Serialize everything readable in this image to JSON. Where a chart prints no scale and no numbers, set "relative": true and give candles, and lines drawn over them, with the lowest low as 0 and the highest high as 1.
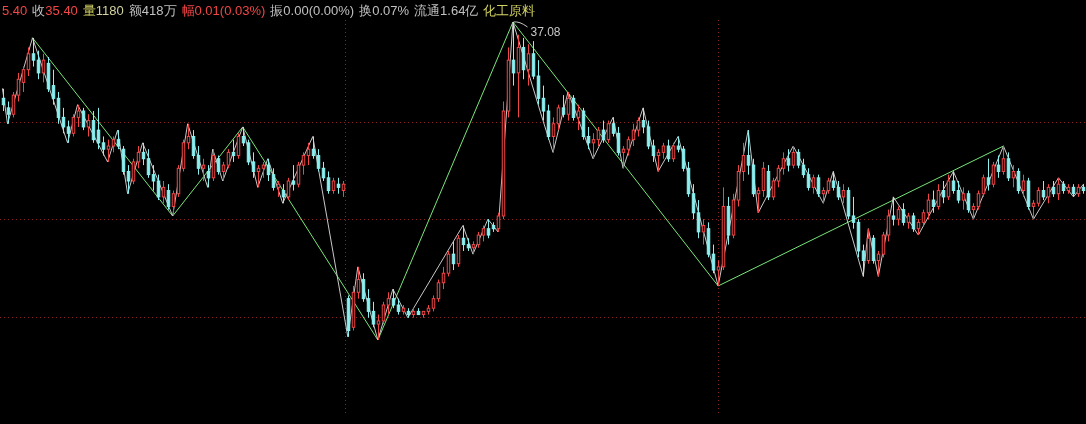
{
  "chart_data": {
    "type": "candlestick",
    "relative": true,
    "grid": true,
    "annotations": [
      "5.40",
      "收35.40",
      "量1180",
      "额418万",
      "幅0.01(0.03%)",
      "振0.00(0.00%)",
      "换0.07%",
      "流通1.64亿",
      "化工原料"
    ],
    "categories": [
      null,
      null,
      null,
      null,
      null,
      null,
      null,
      null,
      null,
      null,
      null,
      null,
      null,
      null,
      null,
      null,
      null,
      null,
      null,
      null,
      null,
      null,
      null,
      null,
      null,
      null,
      null,
      null,
      null,
      null,
      null,
      null,
      null,
      null,
      null,
      null,
      null,
      null,
      null,
      null,
      null,
      null,
      null,
      null,
      null,
      null,
      null,
      null,
      null,
      null,
      null,
      null,
      null,
      null,
      null,
      null,
      null,
      null,
      null,
      null,
      null,
      null,
      null,
      null,
      null,
      null,
      null,
      null,
      null,
      null,
      null,
      null,
      null,
      null,
      null,
      null,
      null,
      null,
      null,
      null,
      null,
      null,
      null,
      null,
      null,
      null,
      null,
      null,
      null,
      null,
      null,
      null,
      null,
      null,
      null,
      null,
      null,
      null,
      null,
      null,
      null,
      null,
      null,
      null,
      null,
      null,
      null,
      null,
      null,
      null,
      null,
      null,
      null,
      null,
      null,
      null,
      null,
      null,
      null,
      null,
      null,
      null,
      null,
      null,
      null,
      null,
      null,
      null,
      null,
      null,
      null,
      null,
      null,
      null,
      null,
      null,
      null,
      null,
      null,
      null,
      null,
      null,
      null,
      null,
      null,
      null,
      null,
      null,
      null,
      null,
      null,
      null,
      null,
      null,
      null,
      null,
      null,
      null,
      null,
      null,
      null,
      null,
      null,
      null,
      null,
      null,
      null,
      null,
      null,
      null,
      null,
      null,
      null,
      null,
      null,
      null,
      null,
      null,
      null,
      null,
      null,
      null,
      null,
      null,
      null,
      null,
      null,
      null,
      null,
      null,
      null,
      null,
      null,
      null,
      null,
      null,
      null,
      null,
      null,
      null,
      null,
      null,
      null,
      null,
      null,
      null,
      null,
      null,
      null,
      null,
      null,
      null,
      null,
      null,
      null,
      null,
      null
    ],
    "ohlc": [
      [
        0.76,
        0.79,
        0.72,
        0.74
      ],
      [
        0.73,
        0.75,
        0.68,
        0.71
      ],
      [
        0.71,
        0.78,
        0.7,
        0.77
      ],
      [
        0.77,
        0.84,
        0.75,
        0.82
      ],
      [
        0.81,
        0.86,
        0.78,
        0.85
      ],
      [
        0.85,
        0.92,
        0.83,
        0.9
      ],
      [
        0.9,
        0.95,
        0.86,
        0.88
      ],
      [
        0.88,
        0.91,
        0.82,
        0.84
      ],
      [
        0.84,
        0.9,
        0.81,
        0.88
      ],
      [
        0.87,
        0.89,
        0.78,
        0.79
      ],
      [
        0.8,
        0.85,
        0.74,
        0.76
      ],
      [
        0.76,
        0.78,
        0.68,
        0.7
      ],
      [
        0.7,
        0.73,
        0.65,
        0.67
      ],
      [
        0.67,
        0.69,
        0.62,
        0.65
      ],
      [
        0.65,
        0.71,
        0.64,
        0.7
      ],
      [
        0.7,
        0.74,
        0.67,
        0.72
      ],
      [
        0.72,
        0.73,
        0.66,
        0.67
      ],
      [
        0.67,
        0.71,
        0.64,
        0.69
      ],
      [
        0.69,
        0.72,
        0.62,
        0.63
      ],
      [
        0.66,
        0.73,
        0.6,
        0.62
      ],
      [
        0.62,
        0.64,
        0.58,
        0.6
      ],
      [
        0.6,
        0.63,
        0.56,
        0.61
      ],
      [
        0.61,
        0.64,
        0.59,
        0.63
      ],
      [
        0.63,
        0.66,
        0.6,
        0.61
      ],
      [
        0.6,
        0.61,
        0.52,
        0.53
      ],
      [
        0.53,
        0.55,
        0.46,
        0.5
      ],
      [
        0.5,
        0.57,
        0.49,
        0.56
      ],
      [
        0.56,
        0.61,
        0.54,
        0.59
      ],
      [
        0.59,
        0.62,
        0.55,
        0.57
      ],
      [
        0.57,
        0.6,
        0.51,
        0.52
      ],
      [
        0.52,
        0.55,
        0.47,
        0.5
      ],
      [
        0.5,
        0.52,
        0.44,
        0.45
      ],
      [
        0.45,
        0.5,
        0.43,
        0.48
      ],
      [
        0.47,
        0.49,
        0.41,
        0.42
      ],
      [
        0.42,
        0.47,
        0.39,
        0.46
      ],
      [
        0.46,
        0.55,
        0.45,
        0.54
      ],
      [
        0.54,
        0.63,
        0.53,
        0.62
      ],
      [
        0.62,
        0.68,
        0.6,
        0.64
      ],
      [
        0.64,
        0.66,
        0.57,
        0.58
      ],
      [
        0.58,
        0.61,
        0.52,
        0.54
      ],
      [
        0.54,
        0.57,
        0.5,
        0.55
      ],
      [
        0.53,
        0.55,
        0.48,
        0.51
      ],
      [
        0.51,
        0.6,
        0.5,
        0.58
      ],
      [
        0.57,
        0.58,
        0.52,
        0.53
      ],
      [
        0.53,
        0.56,
        0.5,
        0.55
      ],
      [
        0.55,
        0.6,
        0.54,
        0.59
      ],
      [
        0.59,
        0.63,
        0.56,
        0.58
      ],
      [
        0.58,
        0.65,
        0.57,
        0.64
      ],
      [
        0.64,
        0.67,
        0.61,
        0.62
      ],
      [
        0.62,
        0.63,
        0.55,
        0.56
      ],
      [
        0.56,
        0.59,
        0.51,
        0.53
      ],
      [
        0.53,
        0.55,
        0.48,
        0.54
      ],
      [
        0.54,
        0.56,
        0.51,
        0.55
      ],
      [
        0.55,
        0.57,
        0.5,
        0.52
      ],
      [
        0.52,
        0.54,
        0.47,
        0.48
      ],
      [
        0.48,
        0.5,
        0.45,
        0.49
      ],
      [
        0.47,
        0.49,
        0.43,
        0.45
      ],
      [
        0.45,
        0.51,
        0.44,
        0.5
      ],
      [
        0.5,
        0.55,
        0.47,
        0.49
      ],
      [
        0.49,
        0.56,
        0.48,
        0.55
      ],
      [
        0.55,
        0.59,
        0.52,
        0.58
      ],
      [
        0.58,
        0.62,
        0.55,
        0.6
      ],
      [
        0.6,
        0.64,
        0.57,
        0.58
      ],
      [
        0.58,
        0.6,
        0.53,
        0.54
      ],
      [
        0.54,
        0.56,
        0.5,
        0.51
      ],
      [
        0.51,
        0.53,
        0.46,
        0.47
      ],
      [
        0.47,
        0.51,
        0.46,
        0.5
      ],
      [
        0.49,
        0.51,
        0.46,
        0.48
      ],
      [
        0.47,
        0.5,
        0.45,
        0.49
      ],
      [
        0.13,
        0.14,
        0.01,
        0.03
      ],
      [
        0.04,
        0.17,
        0.03,
        0.15
      ],
      [
        0.15,
        0.23,
        0.13,
        0.19
      ],
      [
        0.19,
        0.21,
        0.12,
        0.13
      ],
      [
        0.13,
        0.16,
        0.07,
        0.09
      ],
      [
        0.09,
        0.12,
        0.04,
        0.05
      ],
      [
        0.05,
        0.08,
        0.0,
        0.06
      ],
      [
        0.06,
        0.12,
        0.05,
        0.11
      ],
      [
        0.11,
        0.15,
        0.08,
        0.13
      ],
      [
        0.13,
        0.16,
        0.1,
        0.11
      ],
      [
        0.11,
        0.13,
        0.08,
        0.09
      ],
      [
        0.09,
        0.11,
        0.08,
        0.1
      ],
      [
        0.09,
        0.1,
        0.07,
        0.08
      ],
      [
        0.08,
        0.1,
        0.07,
        0.09
      ],
      [
        0.09,
        0.1,
        0.08,
        0.08
      ],
      [
        0.08,
        0.09,
        0.07,
        0.09
      ],
      [
        0.09,
        0.11,
        0.08,
        0.1
      ],
      [
        0.1,
        0.14,
        0.09,
        0.13
      ],
      [
        0.13,
        0.19,
        0.12,
        0.18
      ],
      [
        0.18,
        0.23,
        0.16,
        0.21
      ],
      [
        0.21,
        0.28,
        0.2,
        0.27
      ],
      [
        0.27,
        0.31,
        0.22,
        0.24
      ],
      [
        0.24,
        0.33,
        0.23,
        0.32
      ],
      [
        0.32,
        0.36,
        0.28,
        0.3
      ],
      [
        0.3,
        0.32,
        0.28,
        0.29
      ],
      [
        0.29,
        0.31,
        0.27,
        0.3
      ],
      [
        0.3,
        0.34,
        0.29,
        0.33
      ],
      [
        0.33,
        0.36,
        0.31,
        0.35
      ],
      [
        0.35,
        0.38,
        0.32,
        0.33
      ],
      [
        0.36,
        0.37,
        0.34,
        0.35
      ],
      [
        0.35,
        0.4,
        0.34,
        0.39
      ],
      [
        0.39,
        0.75,
        0.38,
        0.72
      ],
      [
        0.72,
        0.92,
        0.7,
        0.88
      ],
      [
        0.88,
        1.0,
        0.8,
        0.84
      ],
      [
        0.84,
        0.96,
        0.7,
        0.92
      ],
      [
        0.92,
        0.95,
        0.82,
        0.85
      ],
      [
        0.85,
        0.93,
        0.8,
        0.9
      ],
      [
        0.9,
        0.94,
        0.82,
        0.83
      ],
      [
        0.83,
        0.88,
        0.74,
        0.76
      ],
      [
        0.76,
        0.8,
        0.69,
        0.72
      ],
      [
        0.72,
        0.74,
        0.63,
        0.64
      ],
      [
        0.64,
        0.7,
        0.59,
        0.68
      ],
      [
        0.68,
        0.74,
        0.66,
        0.73
      ],
      [
        0.73,
        0.77,
        0.7,
        0.71
      ],
      [
        0.71,
        0.78,
        0.69,
        0.76
      ],
      [
        0.76,
        0.77,
        0.69,
        0.7
      ],
      [
        0.7,
        0.74,
        0.66,
        0.72
      ],
      [
        0.72,
        0.73,
        0.63,
        0.64
      ],
      [
        0.64,
        0.67,
        0.6,
        0.62
      ],
      [
        0.62,
        0.65,
        0.57,
        0.63
      ],
      [
        0.63,
        0.67,
        0.61,
        0.66
      ],
      [
        0.66,
        0.69,
        0.62,
        0.63
      ],
      [
        0.63,
        0.69,
        0.62,
        0.68
      ],
      [
        0.68,
        0.7,
        0.64,
        0.65
      ],
      [
        0.65,
        0.67,
        0.58,
        0.59
      ],
      [
        0.59,
        0.61,
        0.54,
        0.6
      ],
      [
        0.6,
        0.64,
        0.58,
        0.63
      ],
      [
        0.63,
        0.68,
        0.61,
        0.66
      ],
      [
        0.66,
        0.7,
        0.64,
        0.69
      ],
      [
        0.69,
        0.73,
        0.65,
        0.67
      ],
      [
        0.67,
        0.69,
        0.6,
        0.61
      ],
      [
        0.61,
        0.63,
        0.56,
        0.58
      ],
      [
        0.58,
        0.6,
        0.53,
        0.59
      ],
      [
        0.59,
        0.62,
        0.57,
        0.61
      ],
      [
        0.61,
        0.63,
        0.56,
        0.57
      ],
      [
        0.57,
        0.62,
        0.56,
        0.61
      ],
      [
        0.61,
        0.64,
        0.59,
        0.6
      ],
      [
        0.6,
        0.61,
        0.53,
        0.54
      ],
      [
        0.54,
        0.56,
        0.45,
        0.46
      ],
      [
        0.46,
        0.49,
        0.38,
        0.4
      ],
      [
        0.4,
        0.44,
        0.32,
        0.34
      ],
      [
        0.34,
        0.38,
        0.3,
        0.36
      ],
      [
        0.35,
        0.37,
        0.26,
        0.27
      ],
      [
        0.27,
        0.3,
        0.21,
        0.22
      ],
      [
        0.22,
        0.25,
        0.17,
        0.23
      ],
      [
        0.23,
        0.48,
        0.22,
        0.42
      ],
      [
        0.42,
        0.45,
        0.3,
        0.33
      ],
      [
        0.33,
        0.46,
        0.32,
        0.44
      ],
      [
        0.44,
        0.55,
        0.42,
        0.53
      ],
      [
        0.53,
        0.62,
        0.5,
        0.58
      ],
      [
        0.58,
        0.66,
        0.52,
        0.55
      ],
      [
        0.55,
        0.57,
        0.45,
        0.46
      ],
      [
        0.46,
        0.48,
        0.4,
        0.47
      ],
      [
        0.47,
        0.56,
        0.45,
        0.54
      ],
      [
        0.53,
        0.55,
        0.44,
        0.45
      ],
      [
        0.45,
        0.51,
        0.44,
        0.5
      ],
      [
        0.5,
        0.55,
        0.48,
        0.54
      ],
      [
        0.54,
        0.59,
        0.52,
        0.57
      ],
      [
        0.57,
        0.6,
        0.53,
        0.55
      ],
      [
        0.55,
        0.61,
        0.54,
        0.59
      ],
      [
        0.59,
        0.6,
        0.54,
        0.55
      ],
      [
        0.55,
        0.57,
        0.51,
        0.52
      ],
      [
        0.52,
        0.54,
        0.47,
        0.48
      ],
      [
        0.48,
        0.52,
        0.46,
        0.51
      ],
      [
        0.51,
        0.52,
        0.45,
        0.46
      ],
      [
        0.46,
        0.48,
        0.43,
        0.47
      ],
      [
        0.47,
        0.51,
        0.46,
        0.5
      ],
      [
        0.5,
        0.53,
        0.47,
        0.48
      ],
      [
        0.48,
        0.5,
        0.44,
        0.45
      ],
      [
        0.45,
        0.49,
        0.43,
        0.47
      ],
      [
        0.47,
        0.48,
        0.38,
        0.39
      ],
      [
        0.39,
        0.45,
        0.35,
        0.37
      ],
      [
        0.37,
        0.38,
        0.26,
        0.28
      ],
      [
        0.28,
        0.3,
        0.2,
        0.25
      ],
      [
        0.25,
        0.35,
        0.24,
        0.32
      ],
      [
        0.32,
        0.33,
        0.24,
        0.25
      ],
      [
        0.25,
        0.28,
        0.2,
        0.27
      ],
      [
        0.27,
        0.34,
        0.26,
        0.33
      ],
      [
        0.33,
        0.41,
        0.31,
        0.39
      ],
      [
        0.39,
        0.45,
        0.36,
        0.38
      ],
      [
        0.38,
        0.42,
        0.36,
        0.41
      ],
      [
        0.41,
        0.43,
        0.36,
        0.37
      ],
      [
        0.37,
        0.4,
        0.35,
        0.39
      ],
      [
        0.39,
        0.4,
        0.34,
        0.35
      ],
      [
        0.35,
        0.38,
        0.33,
        0.37
      ],
      [
        0.37,
        0.41,
        0.36,
        0.4
      ],
      [
        0.4,
        0.46,
        0.38,
        0.44
      ],
      [
        0.44,
        0.47,
        0.4,
        0.42
      ],
      [
        0.42,
        0.49,
        0.41,
        0.47
      ],
      [
        0.47,
        0.5,
        0.43,
        0.45
      ],
      [
        0.45,
        0.52,
        0.44,
        0.5
      ],
      [
        0.5,
        0.53,
        0.46,
        0.47
      ],
      [
        0.47,
        0.5,
        0.43,
        0.44
      ],
      [
        0.44,
        0.48,
        0.41,
        0.46
      ],
      [
        0.46,
        0.47,
        0.4,
        0.41
      ],
      [
        0.41,
        0.43,
        0.38,
        0.42
      ],
      [
        0.42,
        0.47,
        0.41,
        0.46
      ],
      [
        0.46,
        0.52,
        0.45,
        0.51
      ],
      [
        0.51,
        0.57,
        0.47,
        0.49
      ],
      [
        0.49,
        0.56,
        0.48,
        0.55
      ],
      [
        0.55,
        0.58,
        0.51,
        0.53
      ],
      [
        0.53,
        0.61,
        0.52,
        0.57
      ],
      [
        0.57,
        0.59,
        0.5,
        0.51
      ],
      [
        0.51,
        0.55,
        0.48,
        0.53
      ],
      [
        0.53,
        0.54,
        0.46,
        0.47
      ],
      [
        0.47,
        0.52,
        0.45,
        0.5
      ],
      [
        0.5,
        0.51,
        0.41,
        0.42
      ],
      [
        0.42,
        0.44,
        0.38,
        0.43
      ],
      [
        0.43,
        0.48,
        0.42,
        0.47
      ],
      [
        0.47,
        0.5,
        0.44,
        0.45
      ],
      [
        0.45,
        0.49,
        0.43,
        0.48
      ],
      [
        0.48,
        0.5,
        0.45,
        0.46
      ],
      [
        0.46,
        0.51,
        0.44,
        0.49
      ],
      [
        0.49,
        0.5,
        0.46,
        0.47
      ],
      [
        0.47,
        0.49,
        0.46,
        0.48
      ],
      [
        0.48,
        0.49,
        0.45,
        0.46
      ],
      [
        0.46,
        0.49,
        0.45,
        0.48
      ],
      [
        0.48,
        0.49,
        0.46,
        0.47
      ]
    ],
    "value_labels": [
      null,
      null,
      null,
      null,
      null,
      null,
      null,
      null,
      null,
      null,
      null,
      null,
      null,
      null,
      null,
      null,
      null,
      null,
      null,
      null,
      null,
      null,
      null,
      null,
      null,
      null,
      null,
      null,
      null,
      null,
      null,
      null,
      null,
      null,
      null,
      null,
      null,
      null,
      null,
      null,
      null,
      null,
      null,
      null,
      null,
      null,
      null,
      null,
      null,
      null,
      null,
      null,
      null,
      null,
      null,
      null,
      null,
      null,
      null,
      null,
      null,
      null,
      null,
      null,
      null,
      null,
      null,
      null,
      null,
      null,
      null,
      null,
      null,
      null,
      null,
      null,
      null,
      null,
      null,
      null,
      null,
      null,
      null,
      null,
      null,
      null,
      null,
      null,
      null,
      null,
      null,
      null,
      null,
      null,
      null,
      null,
      null,
      null,
      null,
      null,
      null,
      null,
      "37.08",
      null,
      null,
      null,
      null,
      null,
      null,
      null,
      null,
      null,
      null,
      null,
      null,
      null,
      null,
      null,
      null,
      null,
      null,
      null,
      null,
      null,
      null,
      null,
      null,
      null,
      null,
      null,
      null,
      null,
      null,
      null,
      null,
      null,
      null,
      null,
      null,
      null,
      null,
      null,
      null,
      null,
      null,
      null,
      null,
      null,
      null,
      null,
      null,
      null,
      null,
      null,
      null,
      null,
      null,
      null,
      null,
      null,
      null,
      null,
      null,
      null,
      null,
      null,
      null,
      null,
      null,
      null,
      null,
      null,
      null,
      null,
      null,
      null,
      null,
      null,
      null,
      null,
      null,
      null,
      null,
      null,
      null,
      null,
      null,
      null,
      null,
      null,
      null,
      null,
      null,
      null,
      null,
      null,
      null,
      null,
      null,
      null,
      null,
      null,
      null,
      null,
      null,
      null,
      null,
      null,
      null,
      null,
      null,
      null,
      null,
      null,
      null,
      null,
      null
    ],
    "series": [
      {
        "type": "line",
        "color": "#78e678",
        "values": [
          null,
          null,
          null,
          null,
          null,
          null,
          0.95,
          null,
          null,
          null,
          null,
          null,
          null,
          null,
          null,
          null,
          null,
          null,
          null,
          null,
          null,
          null,
          null,
          null,
          null,
          null,
          null,
          null,
          null,
          null,
          null,
          null,
          null,
          null,
          0.39,
          null,
          null,
          null,
          null,
          null,
          null,
          null,
          null,
          null,
          null,
          null,
          null,
          null,
          0.67,
          null,
          null,
          null,
          null,
          null,
          null,
          null,
          null,
          null,
          null,
          null,
          null,
          null,
          null,
          null,
          null,
          null,
          null,
          null,
          null,
          null,
          null,
          null,
          null,
          null,
          null,
          0.0,
          null,
          null,
          null,
          null,
          null,
          null,
          null,
          null,
          null,
          null,
          null,
          null,
          null,
          null,
          null,
          null,
          null,
          null,
          null,
          null,
          null,
          null,
          null,
          null,
          null,
          null,
          1.0,
          null,
          null,
          null,
          null,
          null,
          null,
          null,
          null,
          null,
          null,
          null,
          null,
          null,
          null,
          null,
          null,
          null,
          null,
          null,
          null,
          null,
          null,
          null,
          null,
          null,
          null,
          null,
          null,
          null,
          null,
          null,
          null,
          null,
          null,
          null,
          null,
          null,
          null,
          null,
          null,
          0.17,
          null,
          null,
          null,
          null,
          null,
          null,
          null,
          null,
          null,
          null,
          null,
          null,
          null,
          null,
          null,
          null,
          null,
          null,
          null,
          null,
          null,
          null,
          null,
          null,
          null,
          null,
          null,
          null,
          null,
          null,
          null,
          null,
          null,
          null,
          null,
          null,
          null,
          null,
          null,
          null,
          null,
          null,
          null,
          null,
          null,
          null,
          null,
          null,
          null,
          null,
          null,
          null,
          null,
          null,
          null,
          null,
          0.61,
          null,
          null,
          null,
          null,
          null,
          null,
          null,
          null,
          null,
          null,
          null,
          null,
          null,
          null,
          null,
          null
        ]
      },
      {
        "type": "line",
        "color": "#c8c8c8",
        "values": [
          0.79,
          0.68,
          null,
          null,
          null,
          null,
          0.95,
          null,
          null,
          null,
          null,
          null,
          null,
          0.62,
          null,
          0.74,
          null,
          null,
          null,
          null,
          null,
          0.56,
          null,
          0.66,
          null,
          0.46,
          null,
          null,
          0.62,
          null,
          null,
          null,
          null,
          null,
          0.39,
          null,
          null,
          0.68,
          null,
          null,
          null,
          0.48,
          0.6,
          null,
          0.5,
          null,
          null,
          null,
          0.67,
          null,
          null,
          0.48,
          null,
          0.57,
          null,
          null,
          0.43,
          null,
          null,
          null,
          null,
          null,
          0.64,
          null,
          null,
          null,
          null,
          null,
          null,
          0.01,
          null,
          0.23,
          null,
          null,
          null,
          0.0,
          null,
          null,
          0.16,
          null,
          null,
          0.07,
          null,
          null,
          null,
          null,
          null,
          null,
          null,
          null,
          null,
          null,
          0.36,
          null,
          0.27,
          null,
          null,
          0.38,
          null,
          0.34,
          null,
          null,
          1.0,
          null,
          null,
          null,
          null,
          null,
          0.69,
          null,
          0.59,
          null,
          null,
          0.78,
          null,
          null,
          null,
          null,
          0.57,
          null,
          null,
          null,
          0.7,
          null,
          0.54,
          null,
          null,
          null,
          0.73,
          null,
          null,
          0.53,
          null,
          null,
          null,
          0.64,
          null,
          null,
          null,
          null,
          null,
          null,
          null,
          0.17,
          null,
          null,
          null,
          null,
          null,
          0.66,
          null,
          0.4,
          null,
          null,
          null,
          null,
          null,
          null,
          0.61,
          null,
          null,
          null,
          null,
          null,
          0.43,
          null,
          0.53,
          null,
          null,
          null,
          null,
          null,
          0.2,
          0.35,
          null,
          0.2,
          null,
          null,
          0.45,
          null,
          null,
          null,
          null,
          0.33,
          null,
          null,
          null,
          null,
          null,
          null,
          0.53,
          null,
          null,
          null,
          0.38,
          null,
          null,
          null,
          null,
          null,
          0.61,
          null,
          null,
          null,
          null,
          null,
          0.38,
          null,
          null,
          null,
          null,
          0.51,
          null,
          null,
          0.45,
          null,
          0.49
        ]
      }
    ]
  }
}
